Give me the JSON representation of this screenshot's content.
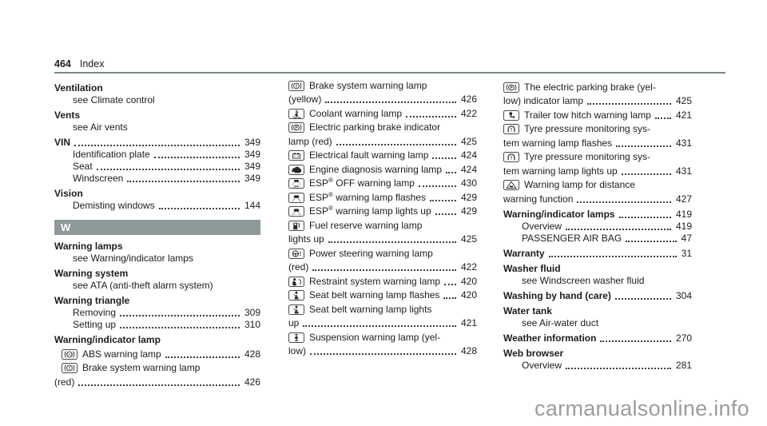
{
  "header": {
    "page_number": "464",
    "section_title": "Index"
  },
  "watermark": "carmanualsonline.info",
  "colors": {
    "section_bar": "#8d9a99",
    "rule": "#7a8a8a",
    "text": "#1c1c1c",
    "watermark": "#9c9c9c"
  },
  "columns": [
    {
      "entries": [
        {
          "type": "heading",
          "term": "Ventilation"
        },
        {
          "type": "see",
          "text": "see Climate control"
        },
        {
          "type": "heading",
          "term": "Vents"
        },
        {
          "type": "see",
          "text": "see Air vents"
        },
        {
          "type": "main",
          "term": "VIN",
          "page": "349"
        },
        {
          "type": "sub",
          "term": "Identification plate",
          "page": "349"
        },
        {
          "type": "sub",
          "term": "Seat",
          "page": "349"
        },
        {
          "type": "sub",
          "term": "Windscreen",
          "page": "349"
        },
        {
          "type": "heading",
          "term": "Vision"
        },
        {
          "type": "sub",
          "term": "Demisting windows",
          "page": "144"
        },
        {
          "type": "section",
          "letter": "W"
        },
        {
          "type": "heading",
          "term": "Warning lamps"
        },
        {
          "type": "see",
          "text": "see Warning/indicator lamps"
        },
        {
          "type": "heading",
          "term": "Warning system"
        },
        {
          "type": "see",
          "text": "see ATA (anti-theft alarm system)"
        },
        {
          "type": "heading",
          "term": "Warning triangle"
        },
        {
          "type": "sub",
          "term": "Removing",
          "page": "309"
        },
        {
          "type": "sub",
          "term": "Setting up",
          "page": "310"
        },
        {
          "type": "heading",
          "term": "Warning/indicator lamp"
        },
        {
          "type": "icon",
          "icon": "abs-warning-lamp-icon",
          "line1": "ABS warning lamp",
          "page": "428",
          "indent": true
        },
        {
          "type": "icon",
          "icon": "brake-system-warning-lamp-icon",
          "line1": "Brake system warning lamp",
          "line2": "(red)",
          "page": "426",
          "indent": true
        }
      ]
    },
    {
      "entries": [
        {
          "type": "icon",
          "icon": "brake-system-warning-lamp-icon",
          "line1": "Brake system warning lamp",
          "line2": "(yellow)",
          "page": "426"
        },
        {
          "type": "icon",
          "icon": "coolant-warning-lamp-icon",
          "line1": "Coolant warning lamp",
          "page": "422"
        },
        {
          "type": "icon",
          "icon": "electric-parking-brake-icon",
          "line1": "Electric parking brake indicator",
          "line2": "lamp (red)",
          "page": "425"
        },
        {
          "type": "icon",
          "icon": "electrical-fault-warning-lamp-icon",
          "line1": "Electrical fault warning lamp",
          "page": "424"
        },
        {
          "type": "icon",
          "icon": "engine-diagnosis-warning-lamp-icon",
          "line1": "Engine diagnosis warning lamp",
          "page": "424"
        },
        {
          "type": "icon",
          "icon": "esp-off-warning-lamp-icon",
          "line1": "ESP® OFF warning lamp",
          "page": "430"
        },
        {
          "type": "icon",
          "icon": "esp-warning-lamp-icon",
          "line1": "ESP® warning lamp flashes",
          "page": "429"
        },
        {
          "type": "icon",
          "icon": "esp-warning-lamp-icon",
          "line1": "ESP® warning lamp lights up",
          "page": "429"
        },
        {
          "type": "icon",
          "icon": "fuel-reserve-warning-lamp-icon",
          "line1": "Fuel reserve warning lamp",
          "line2": "lights up",
          "page": "425"
        },
        {
          "type": "icon",
          "icon": "power-steering-warning-lamp-icon",
          "line1": "Power steering warning lamp",
          "line2": "(red)",
          "page": "422"
        },
        {
          "type": "icon",
          "icon": "restraint-system-warning-lamp-icon",
          "line1": "Restraint system warning lamp",
          "page": "420"
        },
        {
          "type": "icon",
          "icon": "seat-belt-warning-lamp-icon",
          "line1": "Seat belt warning lamp flashes",
          "page": "420"
        },
        {
          "type": "icon",
          "icon": "seat-belt-warning-lamp-icon",
          "line1": "Seat belt warning lamp lights",
          "line2": "up",
          "page": "421"
        },
        {
          "type": "icon",
          "icon": "suspension-warning-lamp-icon",
          "line1": "Suspension warning lamp (yel-",
          "line2": "low)",
          "page": "428"
        }
      ]
    },
    {
      "entries": [
        {
          "type": "icon",
          "icon": "electric-parking-brake-icon",
          "line1": "The electric parking brake (yel-",
          "line2": "low) indicator lamp",
          "page": "425"
        },
        {
          "type": "icon",
          "icon": "trailer-tow-hitch-warning-lamp-icon",
          "line1": "Trailer tow hitch warning lamp",
          "page": "421"
        },
        {
          "type": "icon",
          "icon": "tyre-pressure-warning-lamp-icon",
          "line1": "Tyre pressure monitoring sys-",
          "line2": "tem warning lamp flashes",
          "page": "431"
        },
        {
          "type": "icon",
          "icon": "tyre-pressure-warning-lamp-icon",
          "line1": "Tyre pressure monitoring sys-",
          "line2": "tem warning lamp lights up",
          "page": "431"
        },
        {
          "type": "icon",
          "icon": "distance-warning-lamp-icon",
          "line1": "Warning lamp for distance",
          "line2": "warning function",
          "page": "427"
        },
        {
          "type": "main",
          "term": "Warning/indicator lamps",
          "page": "419"
        },
        {
          "type": "sub",
          "term": "Overview",
          "page": "419"
        },
        {
          "type": "sub",
          "term": "PASSENGER AIR BAG",
          "page": "47"
        },
        {
          "type": "main",
          "term": "Warranty",
          "page": "31"
        },
        {
          "type": "heading",
          "term": "Washer fluid"
        },
        {
          "type": "see",
          "text": "see Windscreen washer fluid"
        },
        {
          "type": "main",
          "term": "Washing by hand (care)",
          "page": "304"
        },
        {
          "type": "heading",
          "term": "Water tank"
        },
        {
          "type": "see",
          "text": "see Air-water duct"
        },
        {
          "type": "main",
          "term": "Weather information",
          "page": "270"
        },
        {
          "type": "heading",
          "term": "Web browser"
        },
        {
          "type": "sub",
          "term": "Overview",
          "page": "281"
        }
      ]
    }
  ]
}
